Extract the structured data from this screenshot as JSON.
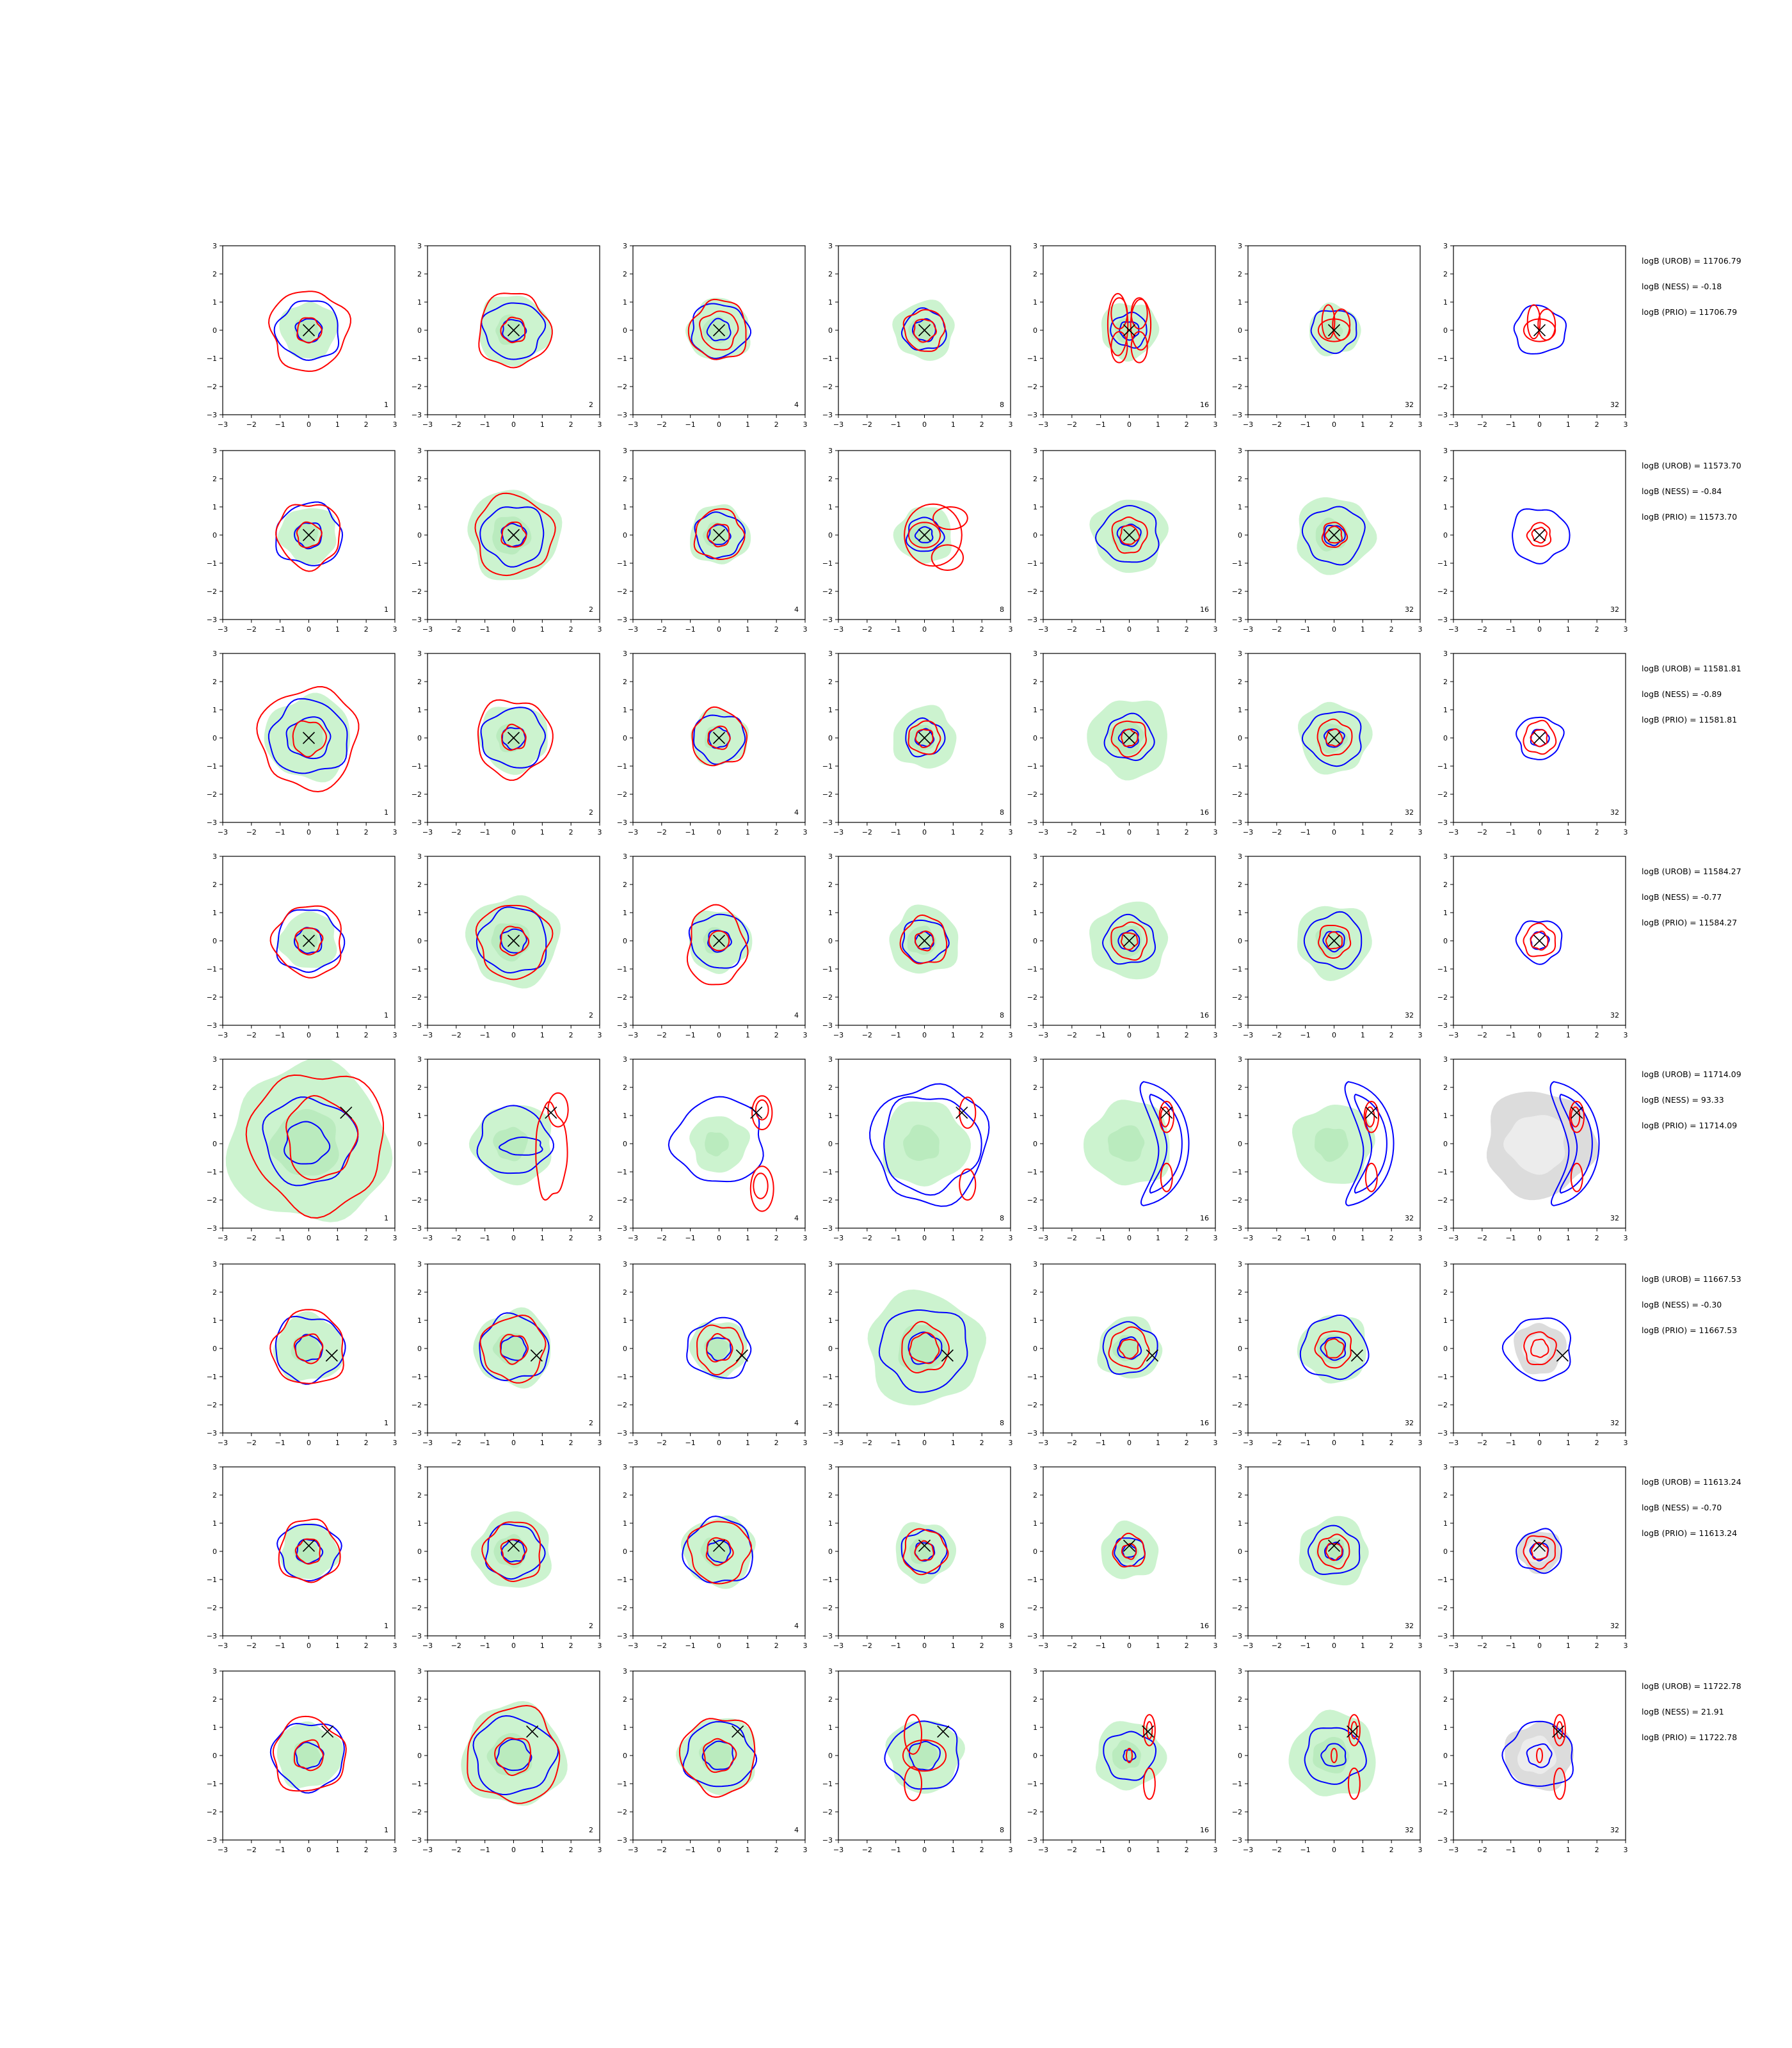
{
  "chart_data": {
    "type": "contour-grid",
    "axes": {
      "xlim": [
        -3,
        3
      ],
      "ylim": [
        -3,
        3
      ],
      "ticks": [
        -3,
        -2,
        -1,
        0,
        1,
        2,
        3
      ]
    },
    "colors": {
      "red": "#ff0000",
      "blue": "#0000ff",
      "green": "#c9f2cc",
      "gray": "#dcdcdc",
      "marker": "#000000"
    },
    "column_labels": [
      "1",
      "2",
      "4",
      "8",
      "16",
      "32",
      "32"
    ],
    "rows": [
      {
        "marker": [
          0,
          0
        ],
        "stats": [
          "logB (UROB) = 11706.79",
          "logB (NESS) = -0.18",
          "logB (PRIO) = 11706.79"
        ],
        "cells": [
          {
            "green": [
              1.0
            ],
            "blue": [
              1.05,
              0.42
            ],
            "red": [
              1.35,
              0.42
            ]
          },
          {
            "green": [
              1.25
            ],
            "blue": [
              1.0,
              0.38
            ],
            "red": [
              1.25,
              0.42
            ]
          },
          {
            "green": [
              1.1
            ],
            "blue": [
              0.95,
              0.38
            ],
            "red": [
              1.0,
              0.65
            ]
          },
          {
            "green": [
              1.05
            ],
            "blue": [
              0.72,
              0.38
            ],
            "red": [
              0.7,
              0.38
            ]
          },
          {
            "green": [
              1.0
            ],
            "blue": [
              0.6,
              0.32
            ],
            "red_special": "quad"
          },
          {
            "green": [
              0.9
            ],
            "blue": [
              0.75
            ],
            "red_special": "quad_small"
          },
          {
            "green": [],
            "blue": [
              0.85
            ],
            "red_special": "quad_small"
          }
        ]
      },
      {
        "marker": [
          0,
          0
        ],
        "stats": [
          "logB (UROB) = 11573.70",
          "logB (NESS) = -0.84",
          "logB (PRIO) = 11573.70"
        ],
        "cells": [
          {
            "green": [
              1.0
            ],
            "blue": [
              1.1,
              0.45
            ],
            "red": [
              1.1,
              0.42
            ]
          },
          {
            "green": [
              1.6
            ],
            "blue": [
              1.05,
              0.4
            ],
            "red": [
              1.35,
              0.42
            ]
          },
          {
            "green": [
              1.05
            ],
            "blue": [
              0.8,
              0.35
            ],
            "red": [
              0.85,
              0.38
            ]
          },
          {
            "green": [
              1.0
            ],
            "blue": [
              0.6,
              0.28
            ],
            "red_special": "lobes_br"
          },
          {
            "green": [
              1.3
            ],
            "blue": [
              1.0,
              0.38
            ],
            "red": [
              0.6,
              0.32
            ]
          },
          {
            "green": [
              1.35
            ],
            "blue": [
              1.0,
              0.35
            ],
            "red": [
              0.42,
              0.28
            ]
          },
          {
            "green": [],
            "blue": [
              0.95
            ],
            "red": [
              0.4,
              0.25
            ]
          }
        ]
      },
      {
        "marker": [
          0,
          0
        ],
        "stats": [
          "logB (UROB) = 11581.81",
          "logB (NESS) = -0.89",
          "logB (PRIO) = 11581.81"
        ],
        "cells": [
          {
            "green": [
              1.5
            ],
            "blue": [
              1.3,
              0.72
            ],
            "red": [
              1.7,
              0.58
            ]
          },
          {
            "green": [
              1.2
            ],
            "blue": [
              1.05,
              0.38
            ],
            "red": [
              1.3,
              0.42
            ]
          },
          {
            "green": [
              1.0
            ],
            "blue": [
              0.85,
              0.35
            ],
            "red": [
              0.95,
              0.38
            ]
          },
          {
            "green": [
              1.1
            ],
            "blue": [
              0.65,
              0.3
            ],
            "red": [
              0.55,
              0.3
            ]
          },
          {
            "green": [
              1.4
            ],
            "blue": [
              0.8,
              0.32
            ],
            "red": [
              0.6,
              0.28
            ]
          },
          {
            "green": [
              1.25
            ],
            "blue": [
              0.95,
              0.32
            ],
            "red": [
              0.6,
              0.28
            ]
          },
          {
            "green": [],
            "blue": [
              0.75,
              0.3
            ],
            "red": [
              0.55,
              0.28
            ]
          }
        ]
      },
      {
        "marker": [
          0,
          0
        ],
        "stats": [
          "logB (UROB) = 11584.27",
          "logB (NESS) = -0.77",
          "logB (PRIO) = 11584.27"
        ],
        "cells": [
          {
            "green": [
              1.0
            ],
            "blue": [
              1.1,
              0.45
            ],
            "red": [
              1.2,
              0.45
            ]
          },
          {
            "green": [
              1.6
            ],
            "blue": [
              1.15,
              0.42
            ],
            "red": [
              1.25,
              0.48
            ]
          },
          {
            "green": [
              1.1
            ],
            "blue": [
              0.95,
              0.38
            ],
            "red_special": "tall_ring"
          },
          {
            "green": [
              1.2
            ],
            "blue": [
              0.75,
              0.3
            ],
            "red": [
              0.8,
              0.32
            ]
          },
          {
            "green": [
              1.35
            ],
            "blue": [
              0.85,
              0.35
            ],
            "red": [
              0.62,
              0.28
            ]
          },
          {
            "green": [
              1.3
            ],
            "blue": [
              0.95,
              0.35
            ],
            "red": [
              0.55,
              0.28
            ]
          },
          {
            "green": [],
            "blue": [
              0.75,
              0.3
            ],
            "red": [
              0.55,
              0.3
            ]
          }
        ]
      },
      {
        "marker": [
          1.3,
          1.1
        ],
        "stats": [
          "logB (UROB) = 11714.09",
          "logB (NESS) = 93.33",
          "logB (PRIO) = 11714.09"
        ],
        "cells": [
          {
            "green": [
              2.8
            ],
            "blue_shape": "big_two",
            "red_shape": "big_two"
          },
          {
            "green": [
              1.4
            ],
            "blue_shape": "mid",
            "red_special": "crescent_big"
          },
          {
            "green": [
              1.0
            ],
            "blue_shape": "mid_big",
            "red_special": "crescent_split"
          },
          {
            "green": [
              1.5
            ],
            "blue_shape": "horse",
            "red_special": "crescent_split_small"
          },
          {
            "green": [
              1.5
            ],
            "blue_shape": "crescent_blue",
            "red_special": "crescent_small"
          },
          {
            "green": [
              1.4
            ],
            "blue_shape": "crescent_blue",
            "red_special": "crescent_small"
          },
          {
            "gray": [
              1.9
            ],
            "blue_shape": "crescent_blue",
            "red_special": "crescent_small"
          }
        ]
      },
      {
        "marker": [
          0.8,
          -0.25
        ],
        "stats": [
          "logB (UROB) = 11667.53",
          "logB (NESS) = -0.30",
          "logB (PRIO) = 11667.53"
        ],
        "cells": [
          {
            "green": [
              1.2
            ],
            "blue": [
              1.15,
              0.45
            ],
            "red": [
              1.25,
              0.48
            ]
          },
          {
            "green": [
              1.35
            ],
            "blue": [
              1.15,
              0.42
            ],
            "red": [
              1.1,
              0.48
            ]
          },
          {
            "green": [
              1.0
            ],
            "blue": [
              1.05,
              0.4
            ],
            "red": [
              0.8,
              0.45
            ]
          },
          {
            "green": [
              2.0
            ],
            "blue": [
              1.45,
              0.55
            ],
            "red": [
              0.82,
              0.5
            ]
          },
          {
            "green": [
              1.1
            ],
            "blue": [
              0.9,
              0.38
            ],
            "red": [
              0.68,
              0.32
            ]
          },
          {
            "green": [
              1.2
            ],
            "blue": [
              1.1,
              0.4
            ],
            "red": [
              0.62,
              0.32
            ]
          },
          {
            "gray": [
              0.9
            ],
            "blue": [
              1.1
            ],
            "red": [
              0.55,
              0.3
            ]
          }
        ]
      },
      {
        "marker": [
          0,
          0.2
        ],
        "stats": [
          "logB (UROB) = 11613.24",
          "logB (NESS) = -0.70",
          "logB (PRIO) = 11613.24"
        ],
        "cells": [
          {
            "green": [
              1.0
            ],
            "blue": [
              1.0,
              0.42
            ],
            "red": [
              1.05,
              0.42
            ]
          },
          {
            "green": [
              1.35
            ],
            "blue": [
              0.95,
              0.38
            ],
            "red": [
              1.0,
              0.42
            ]
          },
          {
            "green": [
              1.25
            ],
            "blue": [
              1.15,
              0.38
            ],
            "red": [
              1.05,
              0.45
            ]
          },
          {
            "green": [
              1.05
            ],
            "blue": [
              0.75,
              0.32
            ],
            "red": [
              0.75,
              0.32
            ]
          },
          {
            "green": [
              1.0
            ],
            "blue": [
              0.5,
              0.22
            ],
            "red": [
              0.55,
              0.25
            ]
          },
          {
            "green": [
              1.2
            ],
            "blue": [
              0.85,
              0.3
            ],
            "red": [
              0.55,
              0.28
            ]
          },
          {
            "gray": [
              0.75
            ],
            "blue": [
              0.75,
              0.3
            ],
            "red": [
              0.55,
              0.28
            ]
          }
        ]
      },
      {
        "marker": [
          0.65,
          0.85
        ],
        "stats": [
          "logB (UROB) = 11722.78",
          "logB (NESS) = 21.91",
          "logB (PRIO) = 11722.78"
        ],
        "cells": [
          {
            "green": [
              1.15
            ],
            "blue": [
              1.2,
              0.45
            ],
            "red": [
              1.25,
              0.5
            ]
          },
          {
            "green": [
              1.8
            ],
            "blue": [
              1.35,
              0.55
            ],
            "red": [
              1.6,
              0.62
            ]
          },
          {
            "green": [
              1.35
            ],
            "blue": [
              1.15,
              0.5
            ],
            "red": [
              1.3,
              0.55
            ]
          },
          {
            "green": [
              1.3
            ],
            "blue": [
              1.2,
              0.5
            ],
            "red_special": "vert_pair_big"
          },
          {
            "green": [
              1.2
            ],
            "blue": [
              0.85,
              0.2
            ],
            "red_special": "vert_pair"
          },
          {
            "green": [
              1.5
            ],
            "blue": [
              1.0,
              0.4
            ],
            "red_special": "vert_pair"
          },
          {
            "gray": [
              1.2
            ],
            "blue": [
              1.15,
              0.4
            ],
            "red_special": "vert_pair"
          }
        ]
      }
    ]
  }
}
